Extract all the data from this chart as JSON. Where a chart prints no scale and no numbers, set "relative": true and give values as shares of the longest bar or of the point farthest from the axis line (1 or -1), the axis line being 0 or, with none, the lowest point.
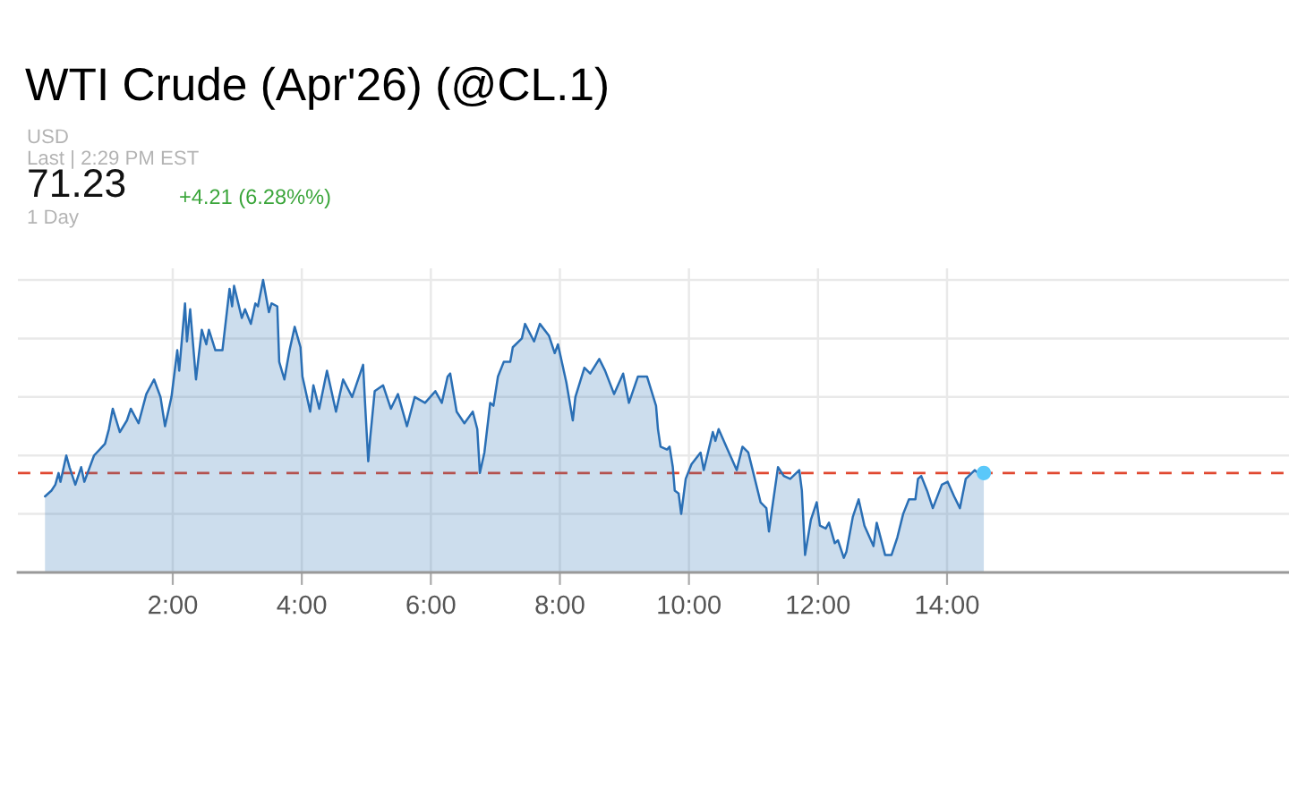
{
  "chart_data": {
    "type": "area",
    "title": "WTI Crude (Apr'26) (@CL.1)",
    "annotations": [
      "USD",
      "Last | 2:29 PM EST",
      "71.23",
      "+4.21 (6.28%%)",
      "1 Day"
    ],
    "relative": true,
    "xlim": [
      -0.4,
      19.3
    ],
    "xticks": [
      {
        "value": 2,
        "label": "2:00"
      },
      {
        "value": 4,
        "label": "4:00"
      },
      {
        "value": 6,
        "label": "6:00"
      },
      {
        "value": 8,
        "label": "8:00"
      },
      {
        "value": 10,
        "label": "10:00"
      },
      {
        "value": 12,
        "label": "12:00"
      },
      {
        "value": 14,
        "label": "14:00"
      }
    ],
    "grid": true,
    "ref_lines": [
      {
        "axis": "y",
        "value": 0.34,
        "color": "#e0472f",
        "line_style": "dashed"
      }
    ],
    "series": [
      {
        "color": "#2a6fb5",
        "x": [
          0.02,
          0.12,
          0.18,
          0.23,
          0.26,
          0.35,
          0.4,
          0.49,
          0.58,
          0.63,
          0.78,
          0.95,
          1.01,
          1.07,
          1.18,
          1.29,
          1.35,
          1.47,
          1.59,
          1.71,
          1.81,
          1.88,
          1.98,
          2.07,
          2.1,
          2.19,
          2.22,
          2.27,
          2.36,
          2.45,
          2.52,
          2.56,
          2.66,
          2.77,
          2.88,
          2.92,
          2.95,
          3.07,
          3.12,
          3.21,
          3.28,
          3.32,
          3.4,
          3.49,
          3.53,
          3.62,
          3.65,
          3.73,
          3.81,
          3.89,
          3.98,
          4.01,
          4.13,
          4.18,
          4.27,
          4.39,
          4.53,
          4.64,
          4.78,
          4.95,
          4.98,
          5.03,
          5.06,
          5.13,
          5.26,
          5.38,
          5.49,
          5.63,
          5.75,
          5.91,
          6.07,
          6.17,
          6.26,
          6.3,
          6.4,
          6.52,
          6.65,
          6.72,
          6.76,
          6.83,
          6.92,
          6.97,
          7.04,
          7.13,
          7.23,
          7.27,
          7.41,
          7.46,
          7.6,
          7.69,
          7.83,
          7.92,
          7.97,
          8.1,
          8.2,
          8.24,
          8.38,
          8.47,
          8.61,
          8.7,
          8.84,
          8.98,
          9.07,
          9.21,
          9.35,
          9.49,
          9.52,
          9.56,
          9.66,
          9.7,
          9.75,
          9.78,
          9.84,
          9.88,
          9.95,
          10.04,
          10.18,
          10.23,
          10.37,
          10.41,
          10.46,
          10.6,
          10.74,
          10.83,
          10.92,
          11.01,
          11.11,
          11.2,
          11.24,
          11.29,
          11.38,
          11.47,
          11.57,
          11.71,
          11.75,
          11.8,
          11.89,
          11.98,
          12.03,
          12.12,
          12.17,
          12.26,
          12.31,
          12.4,
          12.44,
          12.54,
          12.63,
          12.72,
          12.86,
          12.91,
          13.04,
          13.14,
          13.23,
          13.32,
          13.41,
          13.51,
          13.55,
          13.6,
          13.69,
          13.78,
          13.92,
          14.01,
          14.11,
          14.2,
          14.29,
          14.43,
          14.48,
          14.57
        ],
        "values": [
          0.26,
          0.28,
          0.3,
          0.34,
          0.31,
          0.4,
          0.36,
          0.3,
          0.36,
          0.31,
          0.4,
          0.44,
          0.49,
          0.56,
          0.48,
          0.52,
          0.56,
          0.51,
          0.61,
          0.66,
          0.6,
          0.5,
          0.6,
          0.76,
          0.69,
          0.92,
          0.79,
          0.9,
          0.66,
          0.83,
          0.78,
          0.83,
          0.76,
          0.76,
          0.97,
          0.91,
          0.98,
          0.87,
          0.9,
          0.85,
          0.92,
          0.91,
          1.0,
          0.89,
          0.92,
          0.91,
          0.72,
          0.66,
          0.76,
          0.84,
          0.77,
          0.67,
          0.55,
          0.64,
          0.56,
          0.69,
          0.55,
          0.66,
          0.6,
          0.71,
          0.58,
          0.38,
          0.46,
          0.62,
          0.64,
          0.56,
          0.61,
          0.5,
          0.6,
          0.58,
          0.62,
          0.58,
          0.67,
          0.68,
          0.55,
          0.51,
          0.55,
          0.49,
          0.34,
          0.41,
          0.58,
          0.57,
          0.67,
          0.72,
          0.72,
          0.77,
          0.8,
          0.85,
          0.79,
          0.85,
          0.81,
          0.75,
          0.78,
          0.65,
          0.52,
          0.6,
          0.7,
          0.68,
          0.73,
          0.69,
          0.61,
          0.68,
          0.58,
          0.67,
          0.67,
          0.57,
          0.49,
          0.43,
          0.42,
          0.43,
          0.36,
          0.28,
          0.27,
          0.2,
          0.32,
          0.37,
          0.41,
          0.35,
          0.48,
          0.45,
          0.49,
          0.42,
          0.35,
          0.43,
          0.41,
          0.33,
          0.24,
          0.22,
          0.14,
          0.22,
          0.36,
          0.33,
          0.32,
          0.35,
          0.28,
          0.06,
          0.18,
          0.24,
          0.16,
          0.15,
          0.17,
          0.1,
          0.11,
          0.05,
          0.07,
          0.19,
          0.25,
          0.16,
          0.09,
          0.17,
          0.06,
          0.06,
          0.12,
          0.2,
          0.25,
          0.25,
          0.32,
          0.33,
          0.28,
          0.22,
          0.3,
          0.31,
          0.26,
          0.22,
          0.32,
          0.35,
          0.34,
          0.34
        ]
      },
      {
        "type": "scatter",
        "color": "#5ac8fa",
        "x": [
          14.57
        ],
        "values": [
          0.34
        ]
      }
    ]
  }
}
